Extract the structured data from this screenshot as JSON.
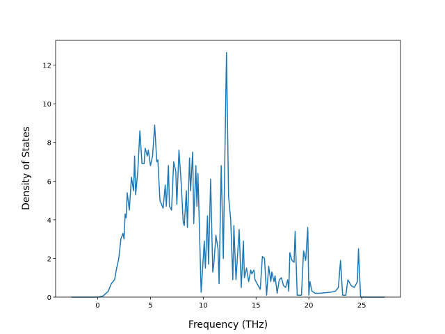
{
  "chart_data": {
    "type": "line",
    "xlabel": "Frequency (THz)",
    "ylabel": "Density of States",
    "x": [
      -2.5,
      0,
      0.5,
      1,
      1.3,
      1.6,
      1.8,
      2.0,
      2.2,
      2.4,
      2.5,
      2.6,
      2.7,
      2.8,
      3.0,
      3.2,
      3.4,
      3.5,
      3.6,
      3.8,
      4.0,
      4.2,
      4.4,
      4.5,
      4.7,
      4.8,
      5.0,
      5.2,
      5.4,
      5.6,
      5.7,
      5.9,
      6.2,
      6.4,
      6.5,
      6.7,
      6.8,
      7.0,
      7.2,
      7.4,
      7.5,
      7.7,
      7.9,
      8.1,
      8.2,
      8.4,
      8.5,
      8.7,
      8.8,
      9.0,
      9.1,
      9.3,
      9.4,
      9.5,
      9.8,
      10.1,
      10.2,
      10.4,
      10.5,
      10.7,
      10.9,
      11.0,
      11.2,
      11.4,
      11.5,
      11.7,
      11.9,
      12.2,
      12.4,
      12.6,
      12.8,
      12.9,
      13.1,
      13.3,
      13.4,
      13.6,
      13.8,
      13.9,
      14.1,
      14.3,
      14.5,
      14.6,
      14.8,
      14.9,
      15.2,
      15.4,
      15.6,
      15.8,
      16.0,
      16.2,
      16.4,
      16.5,
      16.7,
      16.8,
      17.0,
      17.2,
      17.4,
      17.6,
      17.8,
      18.0,
      18.1,
      18.2,
      18.4,
      18.6,
      18.7,
      18.9,
      19.3,
      19.5,
      19.7,
      19.9,
      20.0,
      20.1,
      20.3,
      20.6,
      21.0,
      22.0,
      22.5,
      22.8,
      23.0,
      23.2,
      23.5,
      23.7,
      24.0,
      24.3,
      24.6,
      24.7,
      24.9,
      27.2
    ],
    "series": [
      {
        "color": "#1f77b4",
        "values": [
          0,
          0,
          0.05,
          0.3,
          0.7,
          0.9,
          1.5,
          2.0,
          3.0,
          3.3,
          3.0,
          4.3,
          4.1,
          5.4,
          4.5,
          6.2,
          5.5,
          7.3,
          5.3,
          6.5,
          8.6,
          6.9,
          6.9,
          7.7,
          7.3,
          7.6,
          6.8,
          7.3,
          8.9,
          7.0,
          7.1,
          5.0,
          4.6,
          5.8,
          4.7,
          6.8,
          4.7,
          4.5,
          7.0,
          6.5,
          4.8,
          7.6,
          6.0,
          3.9,
          3.7,
          5.5,
          3.6,
          7.2,
          5.5,
          7.5,
          3.8,
          6.8,
          4.7,
          6.4,
          0.25,
          2.9,
          1.5,
          4.2,
          1.7,
          6.1,
          1.3,
          1.7,
          3.2,
          2.5,
          0.7,
          6.8,
          2.0,
          12.65,
          5.2,
          4.0,
          0.9,
          3.7,
          0.9,
          2.6,
          3.5,
          0.5,
          2.9,
          1.0,
          1.5,
          0.8,
          1.4,
          1.2,
          1.4,
          0.9,
          0.6,
          0.4,
          2.1,
          2.0,
          0.1,
          1.6,
          0.8,
          1.3,
          0.8,
          1.1,
          0.2,
          0.9,
          1.0,
          0.6,
          0.5,
          0.9,
          0.3,
          2.3,
          1.9,
          1.8,
          3.4,
          0.1,
          0.1,
          2.4,
          1.9,
          3.6,
          0.1,
          0.8,
          0.3,
          0.2,
          0.2,
          0.25,
          0.3,
          0.5,
          1.9,
          0.1,
          0.1,
          0.9,
          0.6,
          0.5,
          0.8,
          2.5,
          0,
          0
        ]
      }
    ],
    "xlim": [
      -3.98,
      28.68
    ],
    "ylim": [
      0,
      13.28
    ],
    "xticks": [
      0,
      5,
      10,
      15,
      20,
      25
    ],
    "yticks": [
      0,
      2,
      4,
      6,
      8,
      10,
      12
    ]
  }
}
